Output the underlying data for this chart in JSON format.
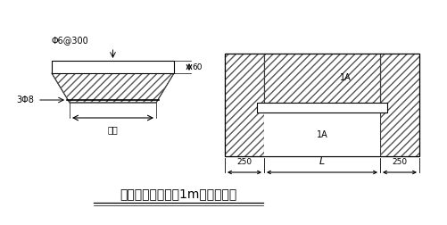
{
  "title": "当洞宽小于或等于1m时过梁做法",
  "bg_color": "#ffffff",
  "line_color": "#000000",
  "label_left_top": "Φ6@300",
  "label_left_mid": "3Φ8",
  "label_left_bot": "洞宽",
  "label_dim_60": "60",
  "label_right_1a_top": "1A",
  "label_right_1a_bot": "1A",
  "label_250_left": "250",
  "label_L": "L",
  "label_250_right": "250"
}
